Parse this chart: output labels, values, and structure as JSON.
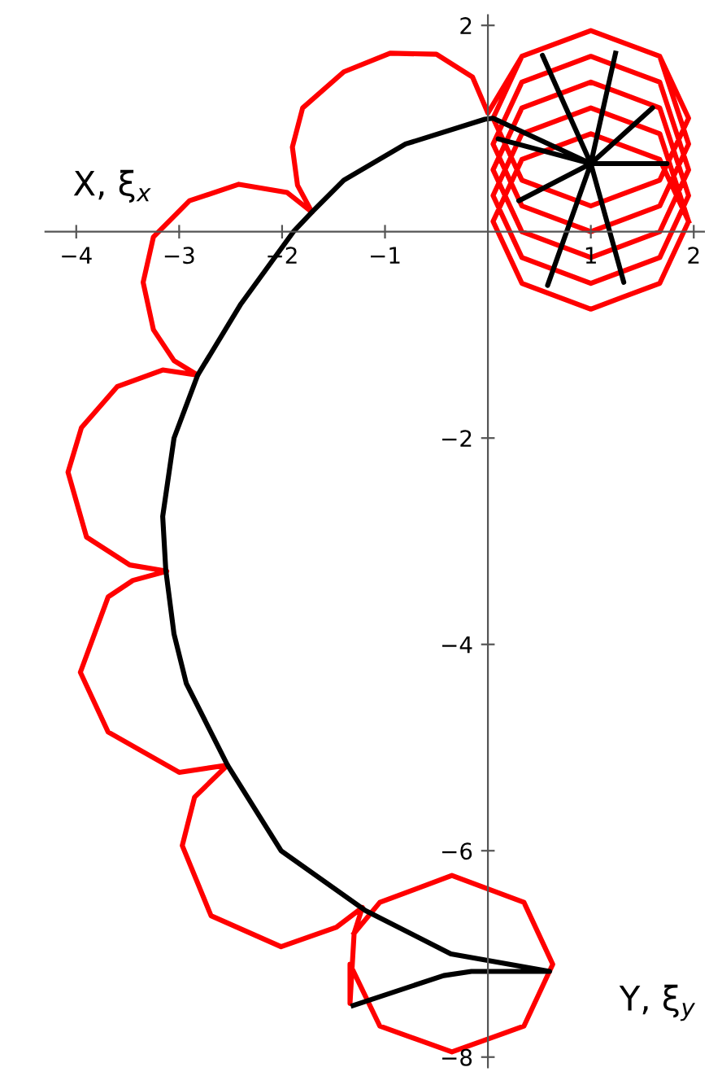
{
  "chart_data": {
    "type": "line",
    "xlabel": "X, ξ$_{x}$",
    "ylabel": "Y, ξ$_{y}$",
    "xlim": [
      -4.3,
      2.1
    ],
    "ylim": [
      -8.1,
      2.1
    ],
    "xticks": [
      -4,
      -3,
      -2,
      -1,
      1,
      2
    ],
    "yticks": [
      2,
      -2,
      -4,
      -6,
      -8
    ],
    "grid": false,
    "legend": false,
    "marker": "none",
    "line_style": "solid",
    "series": [
      {
        "color": "#ff0000",
        "x": [
          1.95,
          1.67,
          1.0,
          0.33,
          0.05,
          0.33,
          1.0,
          1.67,
          1.95,
          1.67,
          1.0,
          0.33,
          0.05,
          0.33,
          1.0,
          1.67,
          1.95,
          1.67,
          1.0,
          0.33,
          0.05,
          0.33,
          1.0,
          1.67,
          1.95,
          1.67,
          1.0,
          0.33,
          0.05,
          0.33,
          1.0,
          1.67,
          1.95,
          1.67,
          1.0,
          0.33,
          0.05,
          0.33,
          1.0,
          1.67,
          1.95,
          1.67,
          1.0,
          0.33,
          0.0,
          -0.15,
          -0.5,
          -0.95,
          -1.4,
          -1.8,
          -1.9,
          -1.85,
          -1.71,
          -1.95,
          -2.42,
          -2.9,
          -3.25,
          -3.35,
          -3.25,
          -3.05,
          -2.82,
          -3.16,
          -3.6,
          -3.95,
          -4.08,
          -3.9,
          -3.48,
          -3.12,
          -3.45,
          -3.69,
          -3.96,
          -3.69,
          -3.0,
          -2.53,
          -2.85,
          -2.97,
          -2.69,
          -2.01,
          -1.47,
          -1.22,
          -1.3,
          -1.34,
          -1.34,
          -1.05,
          -0.35,
          0.35,
          0.63,
          0.35,
          -0.35,
          -1.05,
          -1.3
        ],
        "values": [
          0.1,
          0.7,
          0.95,
          0.7,
          0.1,
          -0.5,
          -0.75,
          -0.5,
          0.1,
          0.95,
          1.2,
          0.95,
          0.35,
          -0.25,
          -0.5,
          -0.25,
          0.35,
          1.2,
          1.45,
          1.2,
          0.6,
          0.0,
          -0.25,
          0.0,
          0.6,
          1.45,
          1.7,
          1.45,
          0.85,
          0.25,
          0.0,
          0.25,
          0.85,
          1.7,
          1.95,
          1.7,
          1.1,
          0.5,
          0.25,
          0.5,
          1.1,
          1.7,
          1.95,
          1.7,
          1.15,
          1.5,
          1.72,
          1.73,
          1.55,
          1.2,
          0.82,
          0.45,
          0.19,
          0.38,
          0.46,
          0.3,
          -0.05,
          -0.49,
          -0.95,
          -1.25,
          -1.39,
          -1.34,
          -1.5,
          -1.9,
          -2.33,
          -2.96,
          -3.23,
          -3.29,
          -3.38,
          -3.54,
          -4.27,
          -4.85,
          -5.24,
          -5.17,
          -5.48,
          -5.95,
          -6.63,
          -6.93,
          -6.74,
          -6.55,
          -6.8,
          -7.48,
          -7.1,
          -7.7,
          -7.95,
          -7.7,
          -7.1,
          -6.5,
          -6.24,
          -6.5,
          -6.8
        ]
      },
      {
        "color": "#000000",
        "x": [
          1.24,
          1.0,
          0.53,
          1.0,
          1.74,
          1.0,
          0.58,
          1.0,
          1.32,
          1.0,
          0.1,
          1.0,
          1.6,
          1.0,
          0.3,
          1.0,
          0.05,
          -0.03,
          -0.8,
          -1.4,
          -1.71,
          -1.89,
          -2.4,
          -2.82,
          -3.05,
          -3.16,
          -3.13,
          -3.05,
          -2.93,
          -2.53,
          -2.01,
          -1.19,
          -0.36,
          0.6,
          -0.16,
          -0.43,
          -1.31
        ],
        "values": [
          1.73,
          0.66,
          1.71,
          0.66,
          0.66,
          0.66,
          -0.52,
          0.66,
          -0.49,
          0.66,
          0.9,
          0.66,
          1.2,
          0.66,
          0.3,
          0.66,
          1.1,
          1.09,
          0.85,
          0.5,
          0.19,
          0.0,
          -0.7,
          -1.39,
          -2.0,
          -2.76,
          -3.28,
          -3.9,
          -4.38,
          -5.17,
          -6.0,
          -6.58,
          -7.0,
          -7.17,
          -7.17,
          -7.21,
          -7.5
        ]
      }
    ]
  }
}
